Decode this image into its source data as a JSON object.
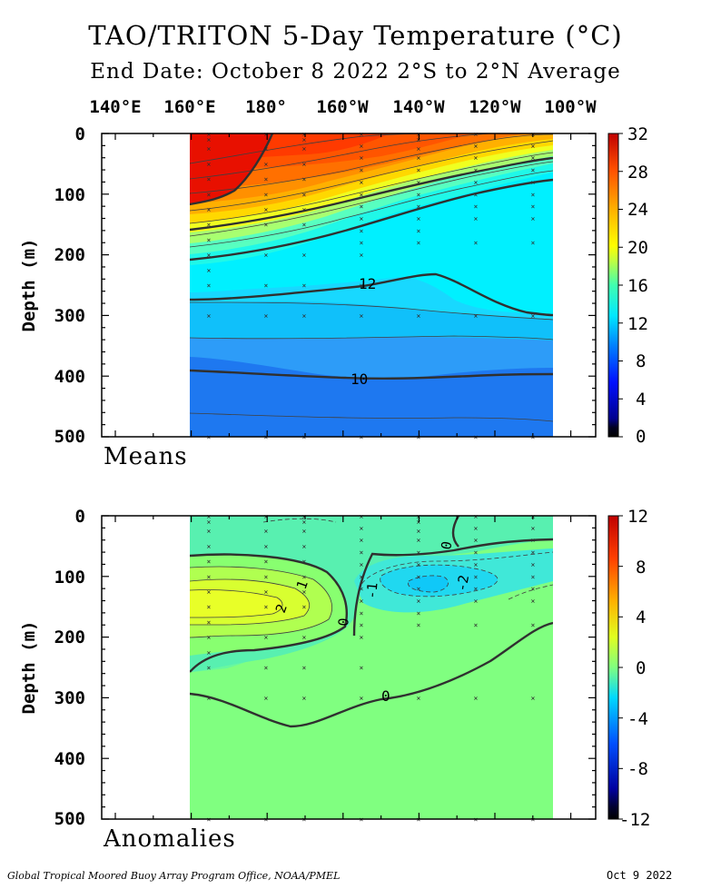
{
  "title": "TAO/TRITON 5-Day Temperature (°C)",
  "subtitle": "End Date: October 8 2022  2°S to 2°N Average",
  "longitude_labels": [
    "140°E",
    "160°E",
    "180°",
    "160°W",
    "140°W",
    "120°W",
    "100°W"
  ],
  "footer_left": "Global Tropical Moored Buoy Array Program Office, NOAA/PMEL",
  "footer_right": "Oct  9 2022",
  "chart_data": [
    {
      "type": "heatmap",
      "panel": "Means",
      "ylabel": "Depth (m)",
      "ylim": [
        0,
        500
      ],
      "y_ticks": [
        0,
        100,
        200,
        300,
        400,
        500
      ],
      "x_ticks": [
        "140°E",
        "160°E",
        "180°",
        "160°W",
        "140°W",
        "120°W",
        "100°W"
      ],
      "colorbar_ticks": [
        0,
        4,
        8,
        12,
        16,
        20,
        24,
        28,
        32
      ],
      "colorbar_range": [
        0,
        32
      ],
      "contour_labels": [
        {
          "text": "12",
          "value": 12
        },
        {
          "text": "10",
          "value": 10
        }
      ],
      "isotherm_depths": {
        "longitudes": [
          "160°E",
          "170°E",
          "180°",
          "170°W",
          "160°W",
          "150°W",
          "140°W",
          "130°W",
          "120°W",
          "110°W",
          "100°W",
          "95°W"
        ],
        "28": [
          120,
          105,
          95,
          75,
          55,
          35,
          20,
          5,
          0,
          0,
          0,
          0
        ],
        "20": [
          185,
          178,
          168,
          155,
          140,
          122,
          108,
          93,
          80,
          70,
          62,
          58
        ],
        "14": [
          235,
          228,
          220,
          210,
          198,
          180,
          165,
          152,
          140,
          132,
          126,
          123
        ],
        "12": [
          280,
          276,
          262,
          250,
          248,
          244,
          240,
          255,
          280,
          295,
          300,
          300
        ],
        "10": [
          393,
          396,
          405,
          412,
          415,
          416,
          414,
          410,
          406,
          405,
          405,
          405
        ]
      }
    },
    {
      "type": "heatmap",
      "panel": "Anomalies",
      "ylabel": "Depth (m)",
      "ylim": [
        0,
        500
      ],
      "y_ticks": [
        0,
        100,
        200,
        300,
        400,
        500
      ],
      "x_ticks": [
        "140°E",
        "160°E",
        "180°",
        "160°W",
        "140°W",
        "120°W",
        "100°W"
      ],
      "colorbar_ticks": [
        -12,
        -8,
        -4,
        0,
        4,
        8,
        12
      ],
      "colorbar_range": [
        -12,
        12
      ],
      "contour_labels": [
        {
          "text": "1",
          "value": 1
        },
        {
          "text": "2",
          "value": 2
        },
        {
          "text": "0",
          "value": 0
        },
        {
          "text": "-1",
          "value": -1
        },
        {
          "text": "-2",
          "value": -2
        },
        {
          "text": "0",
          "value": 0
        },
        {
          "text": "0",
          "value": 0
        }
      ],
      "features": [
        {
          "kind": "warm anomaly core",
          "max_value": 3,
          "longitude": "165°E",
          "depth": 145
        },
        {
          "kind": "cool anomaly core",
          "min_value": -3,
          "longitude": "140°W",
          "depth": 120
        }
      ]
    }
  ]
}
